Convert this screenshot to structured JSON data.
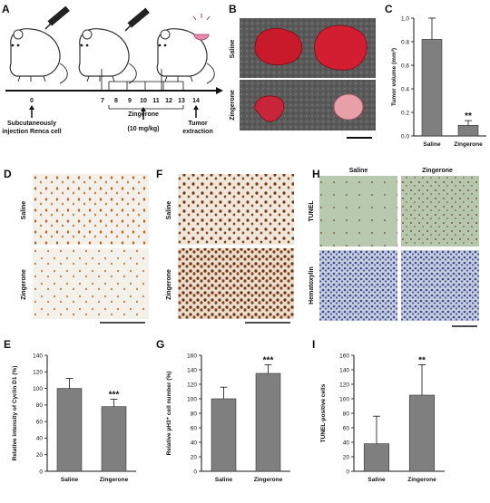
{
  "panels": {
    "A": {
      "letter": "A",
      "timeline_ticks": [
        "0",
        "7",
        "8",
        "9",
        "10",
        "11",
        "12",
        "13",
        "14"
      ],
      "event_injection": "Subcutaneously injection Renca cell",
      "event_injection_line1": "Subcutaneously",
      "event_injection_line2": "injection Renca cell",
      "event_treatment_line1": "Zingerone",
      "event_treatment_line2": "(10 mg/kg)",
      "event_extraction_line1": "Tumor",
      "event_extraction_line2": "extraction"
    },
    "B": {
      "letter": "B",
      "row_labels": [
        "Saline",
        "Zingerone"
      ]
    },
    "D": {
      "letter": "D",
      "row_labels": [
        "Saline",
        "Zingerone"
      ]
    },
    "F": {
      "letter": "F",
      "row_labels": [
        "Saline",
        "Zingerone"
      ]
    },
    "H": {
      "letter": "H",
      "col_labels": [
        "Saline",
        "Zingerone"
      ],
      "row_labels": [
        "TUNEL",
        "Hematoxylin"
      ]
    }
  },
  "chart_data": [
    {
      "letter": "C",
      "type": "bar",
      "categories": [
        "Saline",
        "Zingerone"
      ],
      "values": [
        0.82,
        0.09
      ],
      "errors": [
        0.18,
        0.04
      ],
      "ylabel": "Tumor volume (mm³)",
      "ylim": [
        0,
        1.0
      ],
      "yticks": [
        "0.0",
        "0.2",
        "0.4",
        "0.6",
        "0.8",
        "1.0"
      ],
      "significance": [
        "",
        "**"
      ],
      "bar_color": "#7f7f7f"
    },
    {
      "letter": "E",
      "type": "bar",
      "categories": [
        "Saline",
        "Zingerone"
      ],
      "values": [
        100,
        78
      ],
      "errors": [
        12,
        9
      ],
      "ylabel": "Relative intensity of Cyclin D1 (%)",
      "ylim": [
        0,
        140
      ],
      "yticks": [
        "0",
        "20",
        "40",
        "60",
        "80",
        "100",
        "120",
        "140"
      ],
      "significance": [
        "",
        "***"
      ],
      "bar_color": "#7f7f7f"
    },
    {
      "letter": "G",
      "type": "bar",
      "categories": [
        "Saline",
        "Zingerone"
      ],
      "values": [
        100,
        135
      ],
      "errors": [
        16,
        12
      ],
      "ylabel": "Relative pH3⁺ cell number (%)",
      "ylim": [
        0,
        160
      ],
      "yticks": [
        "0",
        "20",
        "40",
        "60",
        "80",
        "100",
        "120",
        "140",
        "160"
      ],
      "significance": [
        "",
        "***"
      ],
      "bar_color": "#7f7f7f"
    },
    {
      "letter": "I",
      "type": "bar",
      "categories": [
        "Saline",
        "Zingerone"
      ],
      "values": [
        38,
        105
      ],
      "errors": [
        38,
        42
      ],
      "ylabel": "TUNEL-positive cells",
      "ylim": [
        0,
        160
      ],
      "yticks": [
        "0",
        "20",
        "40",
        "60",
        "80",
        "100",
        "120",
        "140",
        "160"
      ],
      "significance": [
        "",
        "**"
      ],
      "bar_color": "#7f7f7f"
    }
  ]
}
